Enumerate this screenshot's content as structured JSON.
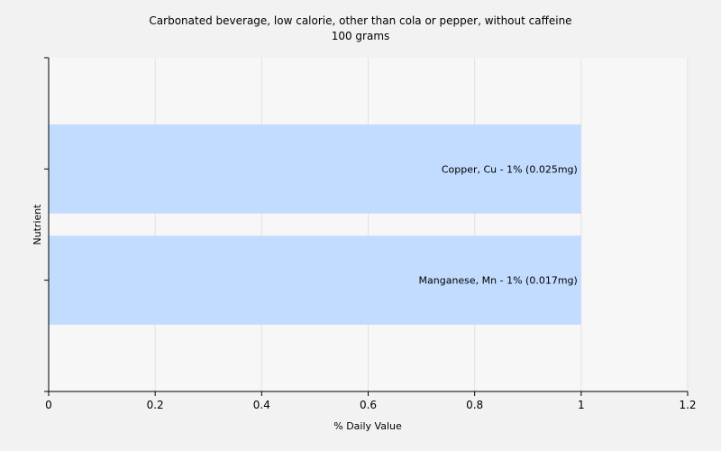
{
  "chart_data": {
    "type": "bar",
    "orientation": "horizontal",
    "title": "Carbonated beverage, low calorie, other than cola or pepper,  without caffeine",
    "subtitle": "100 grams",
    "xlabel": "% Daily Value",
    "ylabel": "Nutrient",
    "xlim": [
      0,
      1.2
    ],
    "xticks": [
      0,
      0.2,
      0.4,
      0.6,
      0.8,
      1,
      1.2
    ],
    "grid": true,
    "categories": [
      "Copper, Cu",
      "Manganese, Mn"
    ],
    "values": [
      1,
      1
    ],
    "labels": [
      "Copper, Cu - 1% (0.025mg)",
      "Manganese, Mn - 1% (0.017mg)"
    ],
    "bar_color": "#c2dcff",
    "background_color": "#f2f2f2"
  }
}
